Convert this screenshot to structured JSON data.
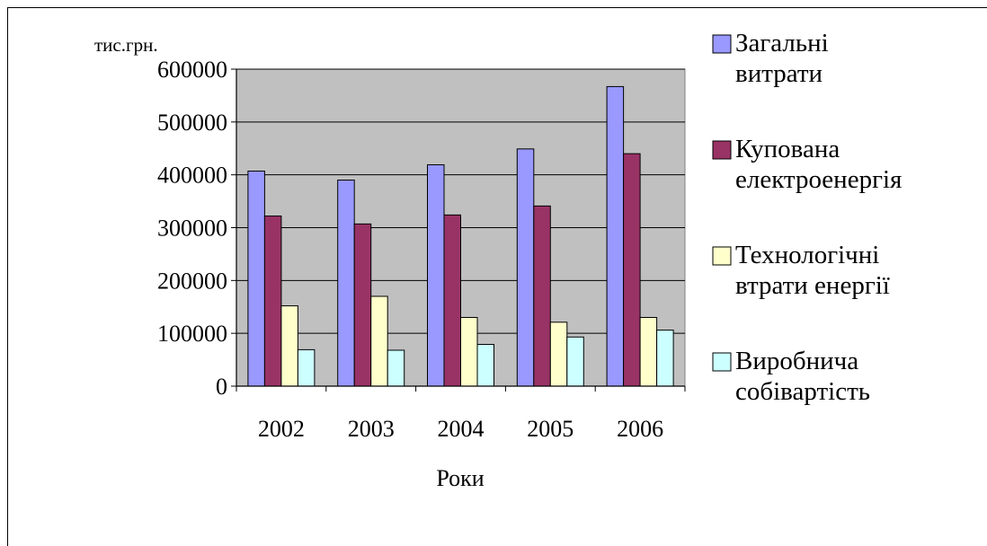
{
  "chart_data": {
    "type": "bar",
    "title": "",
    "ylabel": "тис.грн.",
    "xlabel": "Роки",
    "categories": [
      "2002",
      "2003",
      "2004",
      "2005",
      "2006"
    ],
    "ylim": [
      0,
      600000
    ],
    "yticks": [
      0,
      100000,
      200000,
      300000,
      400000,
      500000,
      600000
    ],
    "grid": true,
    "legend_position": "right",
    "series": [
      {
        "name": "Загальні витрати",
        "color": "#9999ff",
        "values": [
          407000,
          390000,
          419000,
          449000,
          567000
        ]
      },
      {
        "name": "Купована електроенергія",
        "color": "#993366",
        "values": [
          322000,
          307000,
          324000,
          341000,
          440000
        ]
      },
      {
        "name": "Технологічні втрати енергії",
        "color": "#ffffcc",
        "values": [
          152000,
          170000,
          130000,
          121000,
          130000
        ]
      },
      {
        "name": "Виробнича собівартість",
        "color": "#ccffff",
        "values": [
          69000,
          68000,
          79000,
          93000,
          106000
        ]
      }
    ],
    "plot_background": "#c0c0c0"
  }
}
